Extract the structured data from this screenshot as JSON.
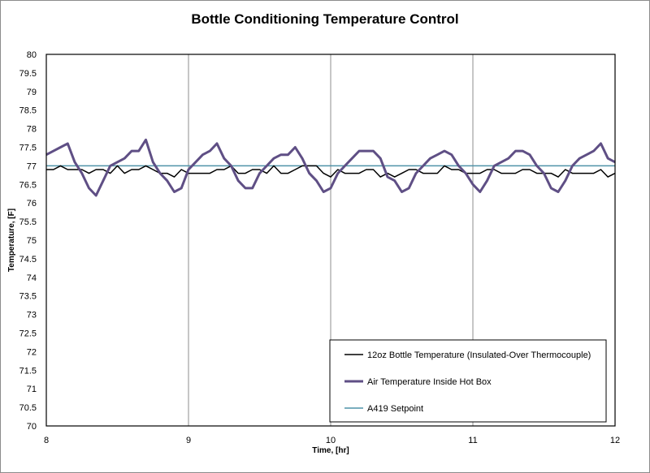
{
  "chart_data": {
    "type": "line",
    "title": "Bottle Conditioning Temperature Control",
    "xlabel": "Time, [hr]",
    "ylabel": "Temperature, [F]",
    "xlim": [
      8,
      12
    ],
    "ylim": [
      70,
      80
    ],
    "x_ticks": [
      "8",
      "9",
      "10",
      "11",
      "12"
    ],
    "y_ticks": [
      "70",
      "70.5",
      "71",
      "71.5",
      "72",
      "72.5",
      "73",
      "73.5",
      "74",
      "74.5",
      "75",
      "75.5",
      "76",
      "76.5",
      "77",
      "77.5",
      "78",
      "78.5",
      "79",
      "79.5",
      "80"
    ],
    "grid": "vertical",
    "legend_position": "bottom-right",
    "series": [
      {
        "name": "12oz Bottle Temperature (Insulated-Over Thermocouple)",
        "color": "#000000",
        "x": [
          8.0,
          8.05,
          8.1,
          8.15,
          8.2,
          8.25,
          8.3,
          8.35,
          8.4,
          8.45,
          8.5,
          8.55,
          8.6,
          8.65,
          8.7,
          8.75,
          8.8,
          8.85,
          8.9,
          8.95,
          9.0,
          9.05,
          9.1,
          9.15,
          9.2,
          9.25,
          9.3,
          9.35,
          9.4,
          9.45,
          9.5,
          9.55,
          9.6,
          9.65,
          9.7,
          9.75,
          9.8,
          9.85,
          9.9,
          9.95,
          10.0,
          10.05,
          10.1,
          10.15,
          10.2,
          10.25,
          10.3,
          10.35,
          10.4,
          10.45,
          10.5,
          10.55,
          10.6,
          10.65,
          10.7,
          10.75,
          10.8,
          10.85,
          10.9,
          10.95,
          11.0,
          11.05,
          11.1,
          11.15,
          11.2,
          11.25,
          11.3,
          11.35,
          11.4,
          11.45,
          11.5,
          11.55,
          11.6,
          11.65,
          11.7,
          11.75,
          11.8,
          11.85,
          11.9,
          11.95,
          12.0
        ],
        "y": [
          76.9,
          76.9,
          77.0,
          76.9,
          76.9,
          76.9,
          76.8,
          76.9,
          76.9,
          76.8,
          77.0,
          76.8,
          76.9,
          76.9,
          77.0,
          76.9,
          76.8,
          76.8,
          76.7,
          76.9,
          76.8,
          76.8,
          76.8,
          76.8,
          76.9,
          76.9,
          77.0,
          76.8,
          76.8,
          76.9,
          76.9,
          76.8,
          77.0,
          76.8,
          76.8,
          76.9,
          77.0,
          77.0,
          77.0,
          76.8,
          76.7,
          76.9,
          76.8,
          76.8,
          76.8,
          76.9,
          76.9,
          76.7,
          76.8,
          76.7,
          76.8,
          76.9,
          76.9,
          76.8,
          76.8,
          76.8,
          77.0,
          76.9,
          76.9,
          76.8,
          76.8,
          76.8,
          76.9,
          76.9,
          76.8,
          76.8,
          76.8,
          76.9,
          76.9,
          76.8,
          76.8,
          76.8,
          76.7,
          76.9,
          76.8,
          76.8,
          76.8,
          76.8,
          76.9,
          76.7,
          76.8
        ]
      },
      {
        "name": "Air Temperature Inside Hot Box",
        "color": "#5f4f85",
        "x": [
          8.0,
          8.05,
          8.1,
          8.15,
          8.2,
          8.25,
          8.3,
          8.35,
          8.4,
          8.45,
          8.5,
          8.55,
          8.6,
          8.65,
          8.7,
          8.75,
          8.8,
          8.85,
          8.9,
          8.95,
          9.0,
          9.05,
          9.1,
          9.15,
          9.2,
          9.25,
          9.3,
          9.35,
          9.4,
          9.45,
          9.5,
          9.55,
          9.6,
          9.65,
          9.7,
          9.75,
          9.8,
          9.85,
          9.9,
          9.95,
          10.0,
          10.05,
          10.1,
          10.15,
          10.2,
          10.25,
          10.3,
          10.35,
          10.4,
          10.45,
          10.5,
          10.55,
          10.6,
          10.65,
          10.7,
          10.75,
          10.8,
          10.85,
          10.9,
          10.95,
          11.0,
          11.05,
          11.1,
          11.15,
          11.2,
          11.25,
          11.3,
          11.35,
          11.4,
          11.45,
          11.5,
          11.55,
          11.6,
          11.65,
          11.7,
          11.75,
          11.8,
          11.85,
          11.9,
          11.95,
          12.0
        ],
        "y": [
          77.3,
          77.4,
          77.5,
          77.6,
          77.1,
          76.8,
          76.4,
          76.2,
          76.6,
          77.0,
          77.1,
          77.2,
          77.4,
          77.4,
          77.7,
          77.1,
          76.8,
          76.6,
          76.3,
          76.4,
          76.9,
          77.1,
          77.3,
          77.4,
          77.6,
          77.2,
          77.0,
          76.6,
          76.4,
          76.4,
          76.8,
          77.0,
          77.2,
          77.3,
          77.3,
          77.5,
          77.2,
          76.8,
          76.6,
          76.3,
          76.4,
          76.8,
          77.0,
          77.2,
          77.4,
          77.4,
          77.4,
          77.2,
          76.7,
          76.6,
          76.3,
          76.4,
          76.8,
          77.0,
          77.2,
          77.3,
          77.4,
          77.3,
          77.0,
          76.8,
          76.5,
          76.3,
          76.6,
          77.0,
          77.1,
          77.2,
          77.4,
          77.4,
          77.3,
          77.0,
          76.8,
          76.4,
          76.3,
          76.6,
          77.0,
          77.2,
          77.3,
          77.4,
          77.6,
          77.2,
          77.1
        ]
      },
      {
        "name": "A419 Setpoint",
        "color": "#4f93a8",
        "x": [
          8,
          12
        ],
        "y": [
          77.0,
          77.0
        ]
      }
    ]
  }
}
